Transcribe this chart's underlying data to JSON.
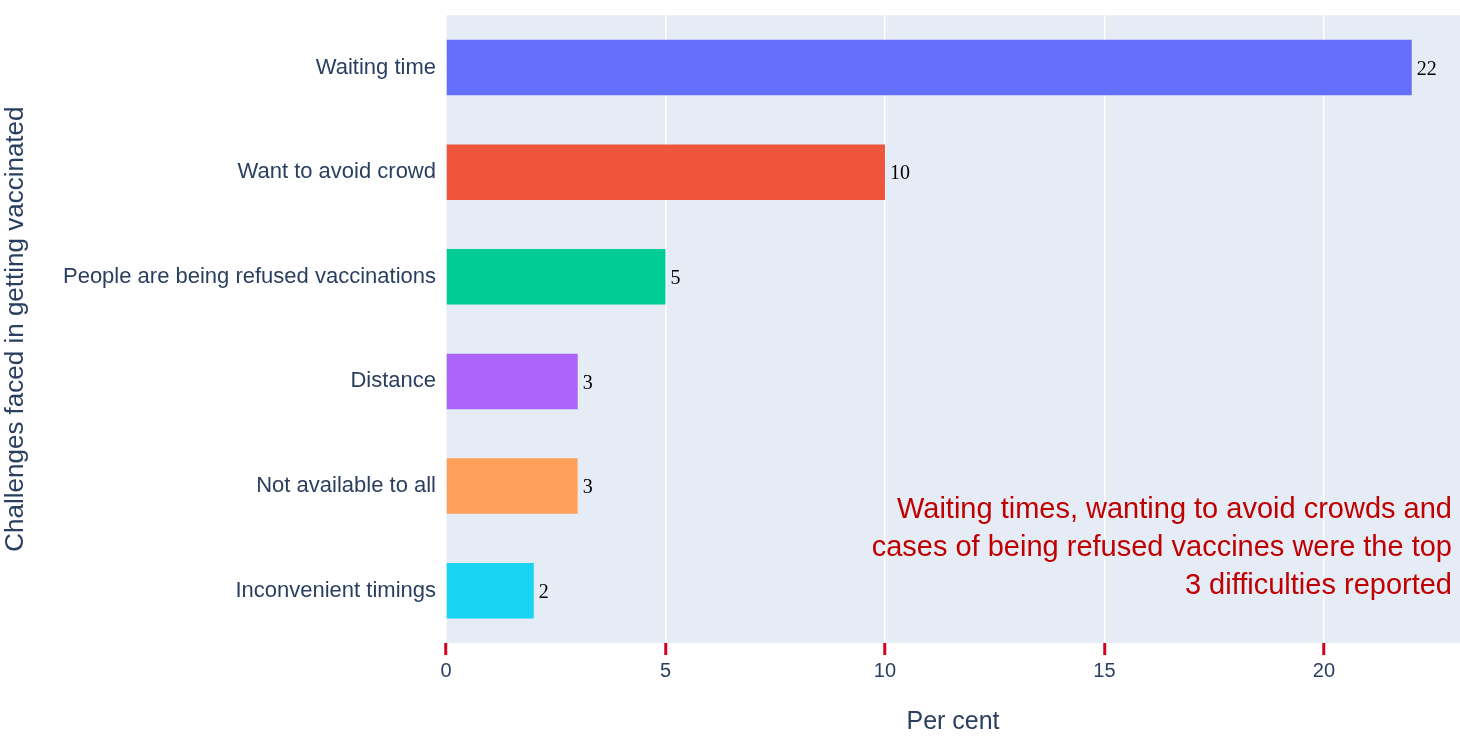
{
  "chart_data": {
    "type": "bar",
    "orientation": "horizontal",
    "categories": [
      "Waiting time",
      "Want to avoid crowd",
      "People are being refused vaccinations",
      "Distance",
      "Not available to all",
      "Inconvenient timings"
    ],
    "values": [
      22,
      10,
      5,
      3,
      3,
      2
    ],
    "colors": [
      "#636efa",
      "#ef553b",
      "#00cc96",
      "#ab63fa",
      "#ffa15a",
      "#19d3f3"
    ],
    "xlabel": "Per cent",
    "ylabel": "Challenges faced in getting vaccinated",
    "xlim": [
      0,
      23.1
    ],
    "xticks": [
      0,
      5,
      10,
      15,
      20
    ],
    "grid": "x",
    "legend": false,
    "data_labels": true,
    "annotations": [
      "Waiting times, wanting to avoid crowds and cases of being refused vaccines were the top 3 difficulties reported"
    ]
  }
}
